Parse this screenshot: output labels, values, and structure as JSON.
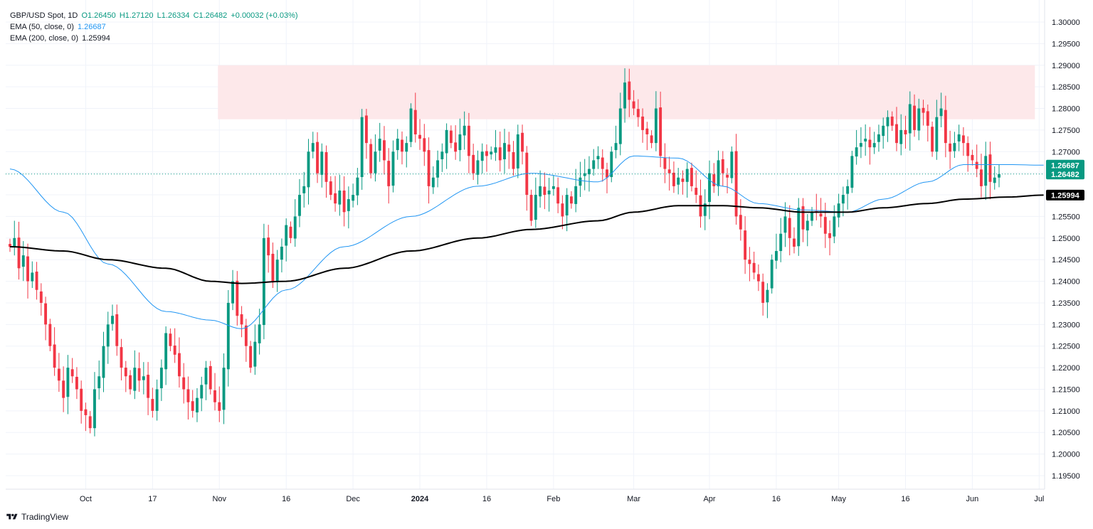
{
  "legend": {
    "symbol": "GBP/USD Spot, 1D",
    "ohlc": {
      "o": "O1.26450",
      "h": "H1.27120",
      "l": "L1.26334",
      "c": "C1.26482",
      "chg": "+0.00032 (+0.03%)"
    },
    "ema50_label": "EMA (50, close, 0)",
    "ema50_value": "1.26687",
    "ema200_label": "EMA (200, close, 0)",
    "ema200_value": "1.25994"
  },
  "brand": {
    "name": "TradingView"
  },
  "colors": {
    "up": "#089981",
    "down": "#f23645",
    "ema50": "#2196f3",
    "ema200": "#000000",
    "zone": "#fde8ea",
    "last": "#089981"
  },
  "chart_data": {
    "type": "candlestick",
    "ylim": [
      1.19,
      1.3
    ],
    "y_ticks": [
      "1.19500",
      "1.20000",
      "1.20500",
      "1.21000",
      "1.21500",
      "1.22000",
      "1.22500",
      "1.23000",
      "1.23500",
      "1.24000",
      "1.24500",
      "1.25000",
      "1.25500",
      "1.26000",
      "1.26500",
      "1.27000",
      "1.27500",
      "1.28000",
      "1.28500",
      "1.29000",
      "1.29500",
      "1.30000"
    ],
    "x_labels": [
      "Oct",
      "17",
      "Nov",
      "16",
      "Dec",
      "2024",
      "16",
      "Feb",
      "Mar",
      "Apr",
      "16",
      "May",
      "16",
      "Jun",
      "Jul"
    ],
    "resistance_zone": {
      "low": 1.2775,
      "high": 1.29,
      "from": "Nov",
      "to": "Jul"
    },
    "price_badges": [
      {
        "label": "1.26687",
        "value": 1.26687,
        "color": "#089981"
      },
      {
        "label": "1.26482",
        "value": 1.26482,
        "color": "#089981"
      },
      {
        "label": "1.25994",
        "value": 1.25994,
        "color": "#000000"
      }
    ],
    "last_close": 1.26482,
    "series": [
      {
        "name": "GBP/USD Spot, 1D",
        "closes": [
          1.248,
          1.25,
          1.243,
          1.246,
          1.24,
          1.242,
          1.238,
          1.235,
          1.23,
          1.225,
          1.22,
          1.217,
          1.213,
          1.22,
          1.218,
          1.215,
          1.21,
          1.209,
          1.206,
          1.215,
          1.218,
          1.225,
          1.23,
          1.232,
          1.225,
          1.22,
          1.218,
          1.215,
          1.22,
          1.217,
          1.218,
          1.213,
          1.21,
          1.215,
          1.22,
          1.228,
          1.225,
          1.223,
          1.218,
          1.215,
          1.212,
          1.21,
          1.213,
          1.216,
          1.22,
          1.215,
          1.212,
          1.21,
          1.22,
          1.235,
          1.24,
          1.232,
          1.23,
          1.225,
          1.22,
          1.226,
          1.23,
          1.25,
          1.246,
          1.24,
          1.245,
          1.248,
          1.253,
          1.25,
          1.255,
          1.26,
          1.262,
          1.27,
          1.272,
          1.265,
          1.27,
          1.263,
          1.26,
          1.258,
          1.261,
          1.256,
          1.259,
          1.26,
          1.264,
          1.278,
          1.272,
          1.265,
          1.27,
          1.273,
          1.268,
          1.262,
          1.27,
          1.273,
          1.27,
          1.272,
          1.28,
          1.274,
          1.273,
          1.27,
          1.262,
          1.264,
          1.268,
          1.27,
          1.275,
          1.272,
          1.27,
          1.274,
          1.276,
          1.269,
          1.265,
          1.268,
          1.27,
          1.269,
          1.27,
          1.271,
          1.268,
          1.272,
          1.27,
          1.266,
          1.274,
          1.27,
          1.26,
          1.254,
          1.26,
          1.262,
          1.26,
          1.261,
          1.262,
          1.258,
          1.255,
          1.26,
          1.258,
          1.262,
          1.264,
          1.265,
          1.266,
          1.268,
          1.269,
          1.266,
          1.264,
          1.27,
          1.272,
          1.28,
          1.286,
          1.282,
          1.28,
          1.278,
          1.275,
          1.274,
          1.272,
          1.28,
          1.269,
          1.266,
          1.265,
          1.262,
          1.264,
          1.263,
          1.266,
          1.262,
          1.26,
          1.255,
          1.258,
          1.265,
          1.262,
          1.268,
          1.265,
          1.264,
          1.27,
          1.255,
          1.252,
          1.245,
          1.244,
          1.242,
          1.24,
          1.235,
          1.238,
          1.245,
          1.247,
          1.251,
          1.255,
          1.25,
          1.248,
          1.257,
          1.252,
          1.254,
          1.256,
          1.256,
          1.255,
          1.251,
          1.25,
          1.255,
          1.258,
          1.26,
          1.262,
          1.269,
          1.271,
          1.272,
          1.273,
          1.271,
          1.272,
          1.274,
          1.276,
          1.278,
          1.276,
          1.272,
          1.275,
          1.274,
          1.281,
          1.275,
          1.28,
          1.279,
          1.276,
          1.27,
          1.278,
          1.28,
          1.272,
          1.27,
          1.272,
          1.274,
          1.272,
          1.269,
          1.268,
          1.266,
          1.262,
          1.269,
          1.263,
          1.264,
          1.2648
        ]
      },
      {
        "name": "EMA (50, close, 0)",
        "anchors": [
          [
            0,
            1.266
          ],
          [
            12,
            1.256
          ],
          [
            22,
            1.244
          ],
          [
            35,
            1.233
          ],
          [
            45,
            1.231
          ],
          [
            52,
            1.229
          ],
          [
            62,
            1.238
          ],
          [
            75,
            1.248
          ],
          [
            90,
            1.255
          ],
          [
            105,
            1.262
          ],
          [
            117,
            1.265
          ],
          [
            132,
            1.263
          ],
          [
            140,
            1.269
          ],
          [
            150,
            1.2685
          ],
          [
            160,
            1.262
          ],
          [
            168,
            1.258
          ],
          [
            178,
            1.2565
          ],
          [
            188,
            1.256
          ],
          [
            196,
            1.259
          ],
          [
            206,
            1.263
          ],
          [
            214,
            1.267
          ],
          [
            224,
            1.267
          ],
          [
            232,
            1.26687
          ]
        ]
      },
      {
        "name": "EMA (200, close, 0)",
        "anchors": [
          [
            0,
            1.248
          ],
          [
            12,
            1.247
          ],
          [
            22,
            1.245
          ],
          [
            35,
            1.243
          ],
          [
            45,
            1.24
          ],
          [
            52,
            1.2395
          ],
          [
            62,
            1.24
          ],
          [
            75,
            1.243
          ],
          [
            90,
            1.247
          ],
          [
            105,
            1.25
          ],
          [
            117,
            1.252
          ],
          [
            132,
            1.254
          ],
          [
            140,
            1.256
          ],
          [
            150,
            1.2575
          ],
          [
            160,
            1.2575
          ],
          [
            168,
            1.257
          ],
          [
            178,
            1.256
          ],
          [
            188,
            1.256
          ],
          [
            196,
            1.257
          ],
          [
            206,
            1.258
          ],
          [
            214,
            1.259
          ],
          [
            224,
            1.2595
          ],
          [
            232,
            1.25994
          ]
        ]
      }
    ]
  }
}
